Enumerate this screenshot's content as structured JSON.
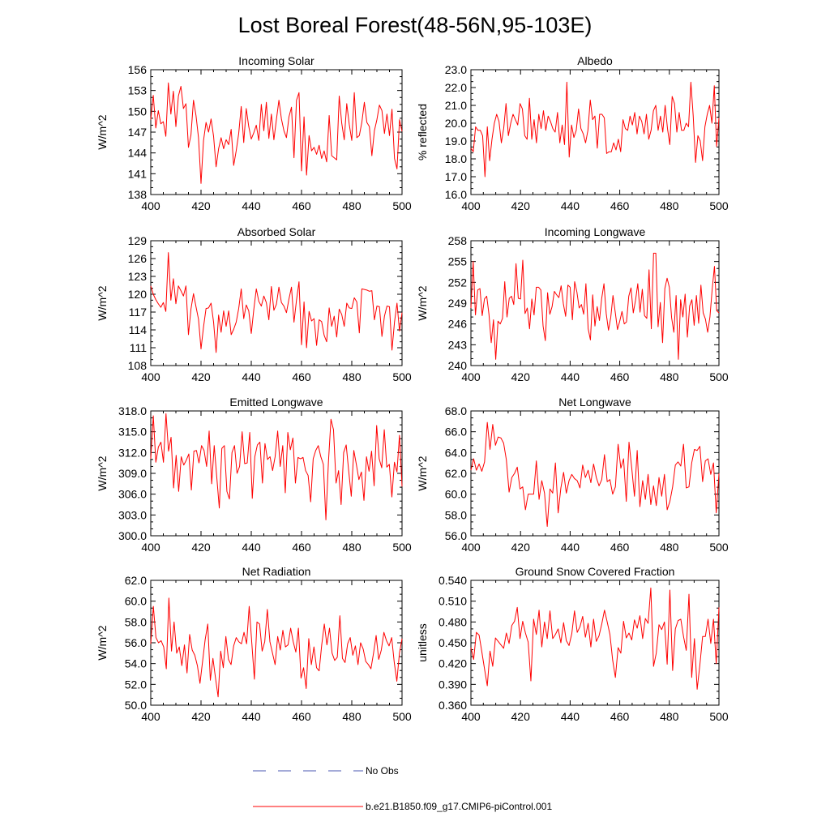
{
  "title": "Lost Boreal Forest(48-56N,95-103E)",
  "series_color": "#ff0000",
  "obs_color": "#4a57b0",
  "legend": {
    "obs_label": "No Obs",
    "model_label": "b.e21.B1850.f09_g17.CMIP6-piControl.001"
  },
  "chart_data": [
    {
      "type": "line",
      "title": "Incoming Solar",
      "ylabel": "W/m^2",
      "xlim": [
        400,
        500
      ],
      "ylim": [
        138,
        156
      ],
      "xticks": [
        "400",
        "420",
        "440",
        "460",
        "480",
        "500"
      ],
      "yticks": [
        "138",
        "141",
        "144",
        "147",
        "150",
        "153",
        "156"
      ],
      "x_start": 400,
      "values": [
        148.8,
        152.3,
        147.6,
        150.1,
        148.2,
        148.5,
        146.4,
        154.1,
        149.6,
        152.9,
        147.8,
        152.2,
        153.6,
        150.4,
        151.1,
        144.8,
        146.6,
        151.6,
        149.4,
        146.2,
        139.6,
        145.8,
        148.4,
        147.0,
        148.9,
        146.4,
        142.0,
        144.6,
        146.2,
        144.6,
        145.9,
        145.2,
        147.4,
        142.2,
        144.3,
        146.8,
        150.7,
        145.5,
        150.4,
        147.8,
        146.0,
        146.9,
        148.0,
        145.8,
        151.0,
        147.2,
        151.3,
        146.1,
        149.6,
        145.9,
        148.8,
        151.6,
        148.9,
        147.2,
        146.2,
        149.2,
        150.6,
        143.3,
        151.6,
        152.7,
        141.4,
        149.2,
        140.8,
        146.5,
        144.3,
        144.8,
        143.8,
        145.1,
        143.2,
        144.3,
        142.7,
        149.4,
        143.6,
        143.3,
        143.0,
        152.2,
        148.3,
        145.9,
        151.1,
        148.1,
        145.8,
        152.7,
        146.2,
        146.5,
        148.4,
        151.3,
        148.4,
        147.8,
        143.6,
        147.2,
        148.8,
        150.9,
        150.1,
        146.8,
        149.6,
        146.5,
        150.3,
        143.2,
        141.7,
        148.8,
        147.1
      ]
    },
    {
      "type": "line",
      "title": "Albedo",
      "ylabel": "% reflected",
      "xlim": [
        400,
        500
      ],
      "ylim": [
        16.0,
        23.0
      ],
      "xticks": [
        "400",
        "420",
        "440",
        "460",
        "480",
        "500"
      ],
      "yticks": [
        "16.0",
        "17.0",
        "18.0",
        "19.0",
        "20.0",
        "21.0",
        "22.0",
        "23.0"
      ],
      "x_start": 400,
      "values": [
        18.6,
        18.4,
        19.8,
        19.6,
        19.6,
        19.3,
        17.0,
        19.8,
        17.9,
        19.1,
        20.0,
        20.5,
        20.1,
        18.9,
        19.7,
        21.1,
        19.3,
        20.0,
        20.5,
        20.2,
        19.9,
        21.1,
        20.8,
        19.3,
        19.1,
        21.4,
        19.1,
        20.2,
        18.9,
        20.5,
        19.7,
        20.7,
        19.6,
        20.4,
        20.1,
        19.7,
        19.5,
        20.6,
        18.9,
        19.9,
        18.8,
        22.3,
        18.1,
        19.9,
        19.2,
        19.6,
        20.8,
        19.7,
        19.4,
        18.9,
        19.6,
        21.3,
        20.2,
        20.4,
        18.6,
        20.5,
        20.5,
        20.3,
        18.3,
        18.4,
        18.4,
        18.9,
        18.5,
        19.1,
        18.4,
        20.2,
        19.7,
        19.6,
        20.4,
        19.9,
        20.6,
        19.4,
        20.4,
        20.1,
        19.4,
        20.5,
        19.1,
        19.6,
        20.7,
        21.0,
        19.6,
        20.4,
        19.5,
        21.0,
        19.7,
        18.8,
        21.5,
        21.1,
        19.5,
        20.6,
        19.6,
        19.6,
        20.0,
        19.8,
        22.3,
        20.4,
        17.8,
        19.3,
        19.0,
        17.9,
        19.8,
        20.5,
        21.0,
        20.0,
        22.1,
        18.7,
        20.3
      ]
    },
    {
      "type": "line",
      "title": "Absorbed Solar",
      "ylabel": "W/m^2",
      "xlim": [
        400,
        500
      ],
      "ylim": [
        108,
        129
      ],
      "xticks": [
        "400",
        "420",
        "440",
        "460",
        "480",
        "500"
      ],
      "yticks": [
        "108",
        "111",
        "114",
        "117",
        "120",
        "123",
        "126",
        "129"
      ],
      "x_start": 400,
      "values": [
        121.4,
        120.0,
        119.1,
        118.4,
        117.8,
        118.6,
        117.1,
        127.0,
        119.0,
        122.6,
        118.4,
        121.4,
        120.6,
        119.7,
        121.4,
        113.2,
        117.5,
        120.1,
        117.9,
        115.8,
        110.8,
        114.5,
        117.6,
        117.7,
        118.5,
        115.3,
        110.2,
        116.5,
        113.6,
        117.2,
        114.6,
        117.2,
        113.2,
        114.1,
        115.3,
        117.6,
        120.9,
        115.9,
        118.2,
        117.2,
        113.4,
        117.4,
        120.9,
        118.8,
        118.0,
        119.7,
        118.6,
        115.7,
        121.3,
        117.3,
        118.3,
        121.2,
        118.6,
        118.0,
        116.9,
        119.2,
        121.2,
        115.3,
        119.0,
        122.1,
        111.5,
        118.7,
        111.0,
        117.1,
        115.5,
        115.9,
        111.4,
        115.7,
        115.4,
        113.1,
        112.0,
        117.7,
        114.6,
        116.3,
        112.8,
        117.5,
        116.6,
        114.6,
        118.5,
        117.7,
        117.6,
        119.4,
        118.7,
        113.5,
        120.9,
        120.8,
        120.7,
        120.5,
        120.6,
        115.7,
        118.0,
        117.9,
        112.9,
        116.3,
        118.0,
        117.9,
        110.6,
        115.3,
        118.5,
        113.8,
        116.9
      ]
    },
    {
      "type": "line",
      "title": "Incoming Longwave",
      "ylabel": "W/m^2",
      "xlim": [
        400,
        500
      ],
      "ylim": [
        240,
        258
      ],
      "xticks": [
        "400",
        "420",
        "440",
        "460",
        "480",
        "500"
      ],
      "yticks": [
        "240",
        "243",
        "246",
        "249",
        "252",
        "255",
        "258"
      ],
      "x_start": 400,
      "values": [
        248.3,
        255.0,
        247.3,
        250.9,
        251.1,
        247.2,
        249.6,
        250.0,
        247.4,
        243.3,
        246.6,
        240.9,
        246.4,
        246.0,
        246.8,
        252.1,
        247.0,
        249.7,
        250.0,
        248.8,
        254.7,
        249.7,
        249.6,
        255.2,
        247.5,
        248.3,
        245.3,
        249.6,
        247.3,
        251.3,
        251.3,
        250.9,
        245.7,
        243.6,
        250.5,
        247.4,
        248.5,
        250.7,
        250.2,
        249.8,
        251.5,
        248.9,
        247.1,
        251.6,
        251.3,
        246.6,
        252.1,
        250.6,
        248.3,
        248.8,
        247.4,
        251.8,
        245.3,
        243.7,
        250.2,
        245.7,
        248.5,
        246.5,
        249.7,
        251.8,
        247.5,
        245.1,
        246.9,
        250.1,
        247.7,
        245.2,
        246.4,
        247.8,
        246.0,
        246.3,
        250.0,
        251.2,
        247.6,
        249.4,
        251.8,
        247.7,
        251.0,
        247.2,
        246.8,
        253.8,
        245.3,
        256.2,
        256.2,
        245.6,
        249.1,
        243.3,
        251.1,
        252.6,
        251.3,
        246.9,
        244.8,
        250.1,
        240.9,
        249.5,
        247.0,
        250.3,
        244.1,
        248.6,
        249.5,
        245.8,
        250.1,
        246.1,
        251.6,
        247.6,
        246.7,
        244.8,
        247.0,
        251.0,
        254.3,
        247.9,
        247.6
      ]
    },
    {
      "type": "line",
      "title": "Emitted Longwave",
      "ylabel": "W/m^2",
      "xlim": [
        400,
        500
      ],
      "ylim": [
        300.0,
        318.0
      ],
      "xticks": [
        "400",
        "420",
        "440",
        "460",
        "480",
        "500"
      ],
      "yticks": [
        "300.0",
        "303.0",
        "306.0",
        "309.0",
        "312.0",
        "315.0",
        "318.0"
      ],
      "x_start": 400,
      "values": [
        311.1,
        317.3,
        310.6,
        312.8,
        313.5,
        310.6,
        317.6,
        312.2,
        314.2,
        306.9,
        311.6,
        306.4,
        311.4,
        310.2,
        310.9,
        311.8,
        306.6,
        312.2,
        312.3,
        310.5,
        313.0,
        312.3,
        310.0,
        315.1,
        307.5,
        313.0,
        308.5,
        304.0,
        312.6,
        313.0,
        306.4,
        305.3,
        312.0,
        313.0,
        309.0,
        310.0,
        315.0,
        310.4,
        310.5,
        314.9,
        305.4,
        311.4,
        313.1,
        313.5,
        307.6,
        313.3,
        311.0,
        311.4,
        309.4,
        311.4,
        315.1,
        310.0,
        313.0,
        306.2,
        314.9,
        312.4,
        314.1,
        307.6,
        311.3,
        311.1,
        311.3,
        309.4,
        308.7,
        304.9,
        311.1,
        312.3,
        313.0,
        311.4,
        310.3,
        302.3,
        310.6,
        316.8,
        315.3,
        307.6,
        309.4,
        304.5,
        312.0,
        313.1,
        309.3,
        305.7,
        312.3,
        310.3,
        308.1,
        309.2,
        305.1,
        311.4,
        309.3,
        312.2,
        307.2,
        315.9,
        311.1,
        309.8,
        315.3,
        309.9,
        310.3,
        305.6,
        310.6,
        309.2,
        314.5,
        307.1
      ]
    },
    {
      "type": "line",
      "title": "Net Longwave",
      "ylabel": "W/m^2",
      "xlim": [
        400,
        500
      ],
      "ylim": [
        56.0,
        68.0
      ],
      "xticks": [
        "400",
        "420",
        "440",
        "460",
        "480",
        "500"
      ],
      "yticks": [
        "56.0",
        "58.0",
        "60.0",
        "62.0",
        "64.0",
        "66.0",
        "68.0"
      ],
      "x_start": 400,
      "values": [
        62.3,
        63.4,
        62.3,
        62.9,
        62.2,
        63.1,
        66.9,
        64.3,
        66.7,
        64.7,
        65.5,
        65.4,
        64.9,
        63.3,
        60.2,
        61.6,
        62.0,
        62.6,
        60.5,
        60.7,
        58.5,
        60.0,
        60.0,
        60.0,
        63.2,
        59.5,
        61.3,
        60.1,
        56.9,
        60.5,
        60.1,
        63.0,
        58.2,
        60.6,
        62.1,
        60.1,
        61.3,
        61.9,
        61.5,
        61.3,
        60.6,
        62.8,
        61.6,
        62.3,
        61.1,
        62.9,
        61.6,
        60.8,
        61.4,
        63.8,
        61.2,
        61.4,
        60.0,
        60.7,
        64.8,
        62.5,
        63.4,
        59.3,
        65.0,
        62.5,
        59.8,
        64.2,
        58.8,
        61.3,
        59.5,
        61.9,
        59.0,
        60.8,
        58.9,
        61.6,
        59.8,
        61.9,
        58.5,
        59.3,
        60.7,
        62.8,
        63.1,
        62.7,
        64.8,
        60.6,
        60.7,
        63.0,
        64.3,
        64.2,
        64.6,
        61.2,
        63.2,
        63.4,
        61.9,
        63.0,
        58.2,
        62.0
      ]
    },
    {
      "type": "line",
      "title": "Net Radiation",
      "ylabel": "W/m^2",
      "xlim": [
        400,
        500
      ],
      "ylim": [
        50.0,
        62.0
      ],
      "xticks": [
        "400",
        "420",
        "440",
        "460",
        "480",
        "500"
      ],
      "yticks": [
        "50.0",
        "52.0",
        "54.0",
        "56.0",
        "58.0",
        "60.0",
        "62.0"
      ],
      "x_start": 400,
      "values": [
        55.9,
        59.5,
        56.5,
        56.0,
        56.2,
        55.6,
        53.5,
        60.3,
        55.2,
        58.0,
        55.0,
        55.6,
        53.8,
        55.8,
        53.1,
        56.8,
        55.3,
        54.8,
        53.8,
        52.1,
        54.2,
        56.3,
        57.8,
        52.4,
        54.5,
        52.6,
        50.8,
        55.2,
        53.6,
        56.6,
        54.4,
        53.9,
        55.7,
        56.5,
        56.1,
        55.9,
        57.0,
        55.9,
        59.5,
        56.0,
        52.5,
        58.0,
        57.8,
        55.2,
        56.1,
        59.2,
        56.1,
        55.0,
        53.9,
        56.6,
        55.3,
        57.2,
        55.6,
        55.8,
        57.4,
        56.1,
        55.1,
        57.4,
        52.6,
        53.6,
        51.6,
        56.4,
        53.9,
        55.6,
        53.6,
        53.3,
        55.8,
        57.8,
        55.8,
        57.4,
        55.0,
        54.3,
        54.6,
        58.6,
        54.5,
        54.1,
        55.9,
        56.5,
        54.8,
        55.7,
        53.9,
        56.0,
        55.4,
        54.2,
        53.9,
        53.5,
        55.0,
        56.7,
        54.4,
        55.3,
        57.0,
        56.2,
        55.7,
        56.5,
        54.1,
        52.3,
        55.0,
        56.4
      ]
    },
    {
      "type": "line",
      "title": "Ground Snow Covered Fraction",
      "ylabel": "unitless",
      "xlim": [
        400,
        500
      ],
      "ylim": [
        0.36,
        0.54
      ],
      "xticks": [
        "400",
        "420",
        "440",
        "460",
        "480",
        "500"
      ],
      "yticks": [
        "0.360",
        "0.390",
        "0.420",
        "0.450",
        "0.480",
        "0.510",
        "0.540"
      ],
      "x_start": 400,
      "values": [
        0.443,
        0.426,
        0.465,
        0.461,
        0.437,
        0.412,
        0.388,
        0.438,
        0.416,
        0.457,
        0.452,
        0.447,
        0.442,
        0.464,
        0.449,
        0.475,
        0.481,
        0.501,
        0.456,
        0.481,
        0.464,
        0.451,
        0.395,
        0.484,
        0.462,
        0.497,
        0.444,
        0.48,
        0.456,
        0.496,
        0.456,
        0.462,
        0.47,
        0.45,
        0.479,
        0.453,
        0.446,
        0.463,
        0.496,
        0.465,
        0.473,
        0.488,
        0.458,
        0.478,
        0.444,
        0.484,
        0.452,
        0.46,
        0.477,
        0.497,
        0.48,
        0.462,
        0.425,
        0.4,
        0.443,
        0.435,
        0.481,
        0.457,
        0.464,
        0.454,
        0.483,
        0.471,
        0.489,
        0.456,
        0.485,
        0.478,
        0.529,
        0.416,
        0.435,
        0.476,
        0.469,
        0.48,
        0.419,
        0.526,
        0.41,
        0.47,
        0.482,
        0.484,
        0.459,
        0.439,
        0.52,
        0.4,
        0.456,
        0.383,
        0.418,
        0.459,
        0.459,
        0.484,
        0.449,
        0.484,
        0.42,
        0.501
      ]
    }
  ]
}
